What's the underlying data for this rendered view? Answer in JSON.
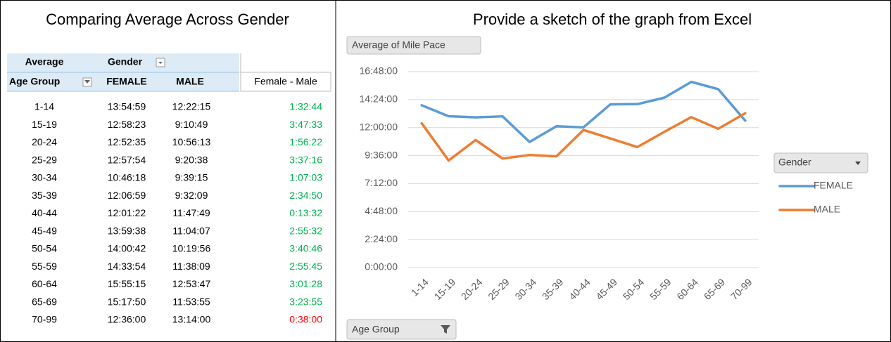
{
  "left": {
    "title": "Comparing Average Across Gender",
    "header": {
      "average": "Average",
      "gender": "Gender",
      "age_group": "Age Group",
      "female": "FEMALE",
      "male": "MALE",
      "difference": "Female - Male"
    },
    "rows": [
      [
        "1-14",
        "13:54:59",
        "12:22:15",
        "1:32:44"
      ],
      [
        "15-19",
        "12:58:23",
        "9:10:49",
        "3:47:33"
      ],
      [
        "20-24",
        "12:52:35",
        "10:56:13",
        "1:56:22"
      ],
      [
        "25-29",
        "12:57:54",
        "9:20:38",
        "3:37:16"
      ],
      [
        "30-34",
        "10:46:18",
        "9:39:15",
        "1:07:03"
      ],
      [
        "35-39",
        "12:06:59",
        "9:32:09",
        "2:34:50"
      ],
      [
        "40-44",
        "12:01:22",
        "11:47:49",
        "0:13:32"
      ],
      [
        "45-49",
        "13:59:38",
        "11:04:07",
        "2:55:32"
      ],
      [
        "50-54",
        "14:00:42",
        "10:19:56",
        "3:40:46"
      ],
      [
        "55-59",
        "14:33:54",
        "11:38:09",
        "2:55:45"
      ],
      [
        "60-64",
        "15:55:15",
        "12:53:47",
        "3:01:28"
      ],
      [
        "65-69",
        "15:17:50",
        "11:53:55",
        "3:23:55"
      ],
      [
        "70-99",
        "12:36:00",
        "13:14:00",
        "0:38:00"
      ]
    ],
    "difference_colors": [
      "#00b050",
      "#00b050",
      "#00b050",
      "#00b050",
      "#00b050",
      "#00b050",
      "#00b050",
      "#00b050",
      "#00b050",
      "#00b050",
      "#00b050",
      "#00b050",
      "#ff0000"
    ]
  },
  "right_title": "Provide a sketch of the graph from Excel",
  "chart_data": {
    "type": "line",
    "value_button": "Average of Mile Pace",
    "axis_button": "Age Group",
    "legend_title": "Gender",
    "legend": "right",
    "categories": [
      "1-14",
      "15-19",
      "20-24",
      "25-29",
      "30-34",
      "35-39",
      "40-44",
      "45-49",
      "50-54",
      "55-59",
      "60-64",
      "65-69",
      "70-99"
    ],
    "series": [
      {
        "name": "FEMALE",
        "color": "#5b9bd5",
        "values": [
          50099,
          46703,
          46355,
          46674,
          38778,
          43619,
          43282,
          50378,
          50442,
          52434,
          57315,
          55070,
          45360
        ]
      },
      {
        "name": "MALE",
        "color": "#ed7d31",
        "values": [
          44535,
          33049,
          39373,
          33638,
          34755,
          34329,
          42469,
          39847,
          37196,
          41889,
          46427,
          42835,
          47640
        ]
      }
    ],
    "ylim": [
      0,
      60480
    ],
    "yticks": [
      {
        "value": 0,
        "label": "0:00:00"
      },
      {
        "value": 8640,
        "label": "2:24:00"
      },
      {
        "value": 17280,
        "label": "4:48:00"
      },
      {
        "value": 25920,
        "label": "7:12:00"
      },
      {
        "value": 34560,
        "label": "9:36:00"
      },
      {
        "value": 43200,
        "label": "12:00:00"
      },
      {
        "value": 51840,
        "label": "14:24:00"
      },
      {
        "value": 60480,
        "label": "16:48:00"
      }
    ],
    "grid": true
  }
}
